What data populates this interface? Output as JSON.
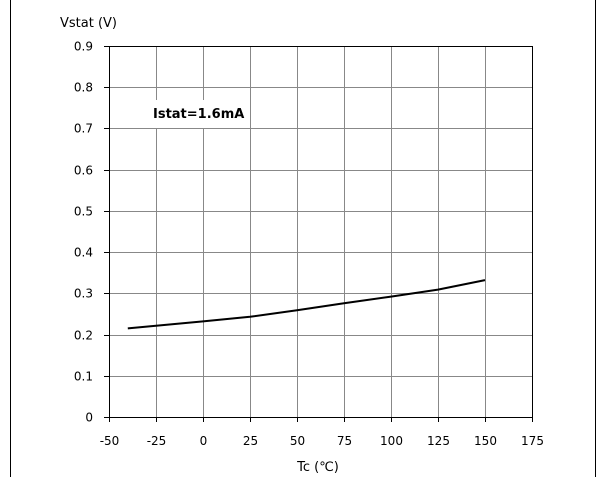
{
  "chart_data": {
    "type": "line",
    "ylabel": "Vstat (V)",
    "xlabel": "Tc (℃)",
    "xlim": [
      -50,
      175
    ],
    "ylim": [
      0,
      0.9
    ],
    "x_ticks": [
      -50,
      -25,
      0,
      25,
      50,
      75,
      100,
      125,
      150,
      175
    ],
    "y_ticks": [
      0,
      0.1,
      0.2,
      0.3,
      0.4,
      0.5,
      0.6,
      0.7,
      0.8,
      0.9
    ],
    "x_tick_labels": [
      "-50",
      "-25",
      "0",
      "25",
      "50",
      "75",
      "100",
      "125",
      "150",
      "175"
    ],
    "y_tick_labels": [
      "0",
      "0.1",
      "0.2",
      "0.3",
      "0.4",
      "0.5",
      "0.6",
      "0.7",
      "0.8",
      "0.9"
    ],
    "grid": true,
    "annotation": "Istat=1.6mA",
    "series": [
      {
        "x": [
          -40,
          0,
          25,
          50,
          75,
          100,
          125,
          150
        ],
        "y": [
          0.215,
          0.232,
          0.243,
          0.259,
          0.276,
          0.292,
          0.309,
          0.332
        ]
      }
    ],
    "colors": {
      "line": "#000000",
      "grid": "#888888",
      "frame": "#000000"
    }
  }
}
